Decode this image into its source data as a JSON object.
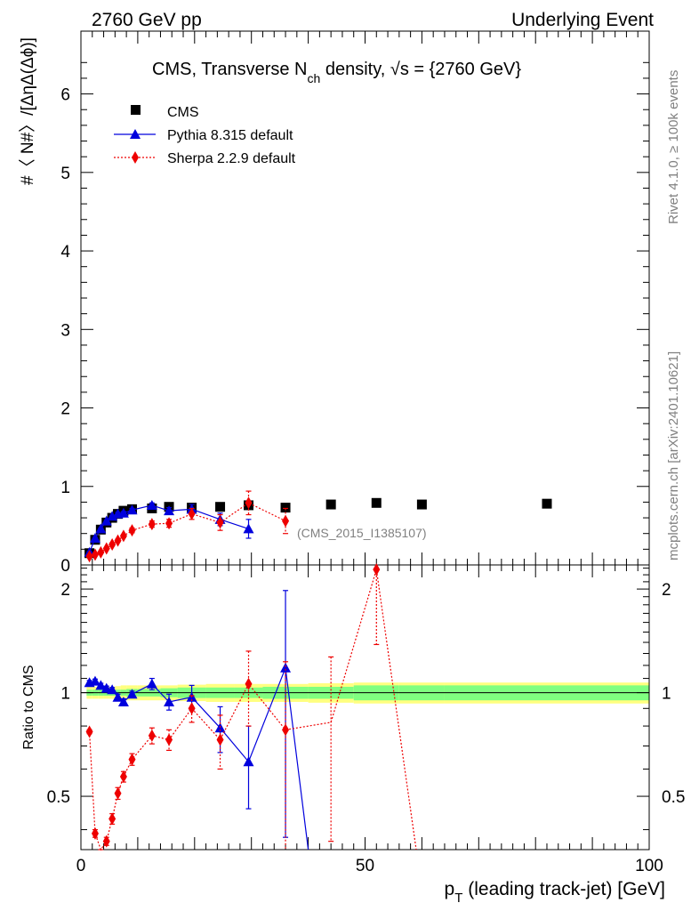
{
  "header": {
    "left": "2760 GeV pp",
    "right": "Underlying Event"
  },
  "side": {
    "rivet": "Rivet 4.1.0, ≥ 100k events",
    "mcplots": "mcplots.cern.ch [arXiv:2401.10621]"
  },
  "colors": {
    "cms": "#000000",
    "pythia": "#0000dd",
    "sherpa": "#ee0000",
    "band_inner": "#80ff80",
    "band_outer": "#ffff80"
  },
  "chart_data": [
    {
      "type": "scatter",
      "title_main": "CMS, Transverse N",
      "title_sub": "ch",
      "title_rest": " density, ",
      "title_sqrt": "√s",
      "title_end": " = {2760 GeV}",
      "ylabel": "#〈 N#〉/[ΔηΔ(Δϕ)]",
      "analysis_tag": "(CMS_2015_I1385107)",
      "xlim": [
        0,
        100
      ],
      "ylim": [
        0,
        6.8
      ],
      "yticks": [
        0,
        1,
        2,
        3,
        4,
        5,
        6
      ],
      "legend": [
        "CMS",
        "Pythia 8.315 default",
        "Sherpa 2.2.9 default"
      ],
      "series": [
        {
          "name": "CMS",
          "marker": "square",
          "x": [
            1.5,
            2.5,
            3.5,
            4.5,
            5.5,
            6.5,
            7.5,
            9,
            12.5,
            15.5,
            19.5,
            24.5,
            29.5,
            36,
            44,
            52,
            60,
            82
          ],
          "y": [
            0.15,
            0.32,
            0.45,
            0.54,
            0.6,
            0.65,
            0.69,
            0.71,
            0.72,
            0.74,
            0.73,
            0.74,
            0.76,
            0.73,
            0.77,
            0.79,
            0.77,
            0.78
          ]
        },
        {
          "name": "Pythia 8.315 default",
          "marker": "triangle",
          "line": "solid",
          "x": [
            1.5,
            2.5,
            3.5,
            4.5,
            5.5,
            6.5,
            7.5,
            9,
            12.5,
            15.5,
            19.5,
            24.5,
            29.5
          ],
          "y": [
            0.16,
            0.34,
            0.46,
            0.56,
            0.62,
            0.65,
            0.66,
            0.7,
            0.76,
            0.69,
            0.71,
            0.58,
            0.46
          ],
          "err": [
            0.01,
            0.01,
            0.01,
            0.01,
            0.01,
            0.02,
            0.02,
            0.02,
            0.03,
            0.04,
            0.06,
            0.08,
            0.12
          ]
        },
        {
          "name": "Sherpa 2.2.9 default",
          "marker": "diamond",
          "line": "dotted",
          "x": [
            1.5,
            2.5,
            3.5,
            4.5,
            5.5,
            6.5,
            7.5,
            9,
            12.5,
            15.5,
            19.5,
            24.5,
            29.5,
            36
          ],
          "y": [
            0.11,
            0.13,
            0.16,
            0.21,
            0.26,
            0.31,
            0.37,
            0.44,
            0.52,
            0.53,
            0.65,
            0.54,
            0.79,
            0.56
          ],
          "err": [
            0.01,
            0.01,
            0.01,
            0.01,
            0.02,
            0.02,
            0.02,
            0.03,
            0.04,
            0.05,
            0.07,
            0.1,
            0.15,
            0.16
          ]
        }
      ]
    },
    {
      "type": "scatter",
      "ylabel": "Ratio to CMS",
      "xlabel_main": "p",
      "xlabel_sub": "T",
      "xlabel_rest": " (leading track-jet) [GeV]",
      "xlim": [
        0,
        100
      ],
      "ylim": [
        0.35,
        2.35
      ],
      "yticks": [
        0.5,
        1,
        2
      ],
      "xticks": [
        0,
        50,
        100
      ],
      "band_edges": [
        1,
        2,
        3,
        4,
        5,
        6,
        7,
        8,
        10,
        14,
        17,
        22,
        27,
        32,
        40,
        48,
        56,
        64,
        100
      ],
      "band_inner": [
        0.02,
        0.02,
        0.02,
        0.02,
        0.02,
        0.02,
        0.02,
        0.025,
        0.025,
        0.03,
        0.035,
        0.035,
        0.035,
        0.04,
        0.04,
        0.05,
        0.05,
        0.05
      ],
      "band_outer": [
        0.04,
        0.04,
        0.04,
        0.04,
        0.04,
        0.045,
        0.05,
        0.05,
        0.05,
        0.05,
        0.055,
        0.06,
        0.06,
        0.06,
        0.065,
        0.07,
        0.07,
        0.07
      ],
      "series": [
        {
          "name": "Pythia 8.315 default",
          "marker": "triangle",
          "line": "solid",
          "x": [
            1.5,
            2.5,
            3.5,
            4.5,
            5.5,
            6.5,
            7.5,
            9,
            12.5,
            15.5,
            19.5,
            24.5,
            29.5,
            36,
            40
          ],
          "y": [
            1.07,
            1.08,
            1.05,
            1.03,
            1.02,
            0.97,
            0.94,
            0.99,
            1.06,
            0.94,
            0.97,
            0.79,
            0.63,
            1.18,
            0.3
          ],
          "err": [
            0.015,
            0.015,
            0.015,
            0.015,
            0.015,
            0.02,
            0.02,
            0.02,
            0.04,
            0.05,
            0.08,
            0.12,
            0.17,
            0.8,
            0
          ],
          "marker_mask": [
            1,
            1,
            1,
            1,
            1,
            1,
            1,
            1,
            1,
            1,
            1,
            1,
            1,
            1,
            0
          ]
        },
        {
          "name": "Sherpa 2.2.9 default",
          "marker": "diamond",
          "line": "dotted",
          "x": [
            1.5,
            2.5,
            3.5,
            4.5,
            5.5,
            6.5,
            7.5,
            9,
            12.5,
            15.5,
            19.5,
            24.5,
            29.5,
            36,
            44,
            52,
            59
          ],
          "y": [
            0.77,
            0.39,
            0.3,
            0.37,
            0.43,
            0.51,
            0.57,
            0.64,
            0.75,
            0.73,
            0.9,
            0.73,
            1.06,
            0.78,
            0.82,
            2.28,
            0.3
          ],
          "err": [
            0.01,
            0.01,
            0.01,
            0.01,
            0.015,
            0.02,
            0.02,
            0.025,
            0.04,
            0.05,
            0.08,
            0.13,
            0.26,
            0.45,
            0.45,
            0.9,
            0
          ],
          "marker_mask": [
            1,
            1,
            1,
            1,
            1,
            1,
            1,
            1,
            1,
            1,
            1,
            1,
            1,
            1,
            0,
            1,
            0
          ]
        }
      ]
    }
  ]
}
